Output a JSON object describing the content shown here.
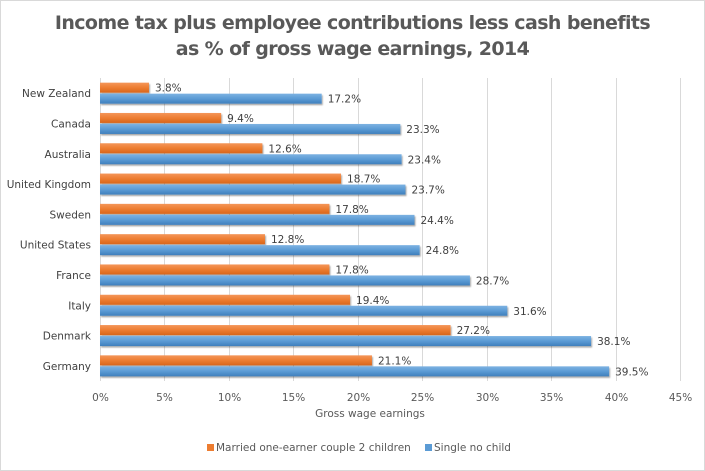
{
  "chart_data": {
    "type": "bar",
    "orientation": "horizontal",
    "title_lines": [
      "Income tax plus employee contributions  less cash benefits",
      "as % of gross wage earnings,  2014"
    ],
    "xlabel": "Gross wage earnings",
    "ylabel": "",
    "xlim": [
      0,
      45
    ],
    "x_ticks": [
      "0%",
      "5%",
      "10%",
      "15%",
      "20%",
      "25%",
      "30%",
      "35%",
      "40%",
      "45%"
    ],
    "x_tick_values": [
      0,
      5,
      10,
      15,
      20,
      25,
      30,
      35,
      40,
      45
    ],
    "grid": true,
    "legend_position": "bottom",
    "categories": [
      "New Zealand",
      "Canada",
      "Australia",
      "United Kingdom",
      "Sweden",
      "United States",
      "France",
      "Italy",
      "Denmark",
      "Germany"
    ],
    "series": [
      {
        "name": "Married one-earner couple 2 children",
        "color": "#ED7D31",
        "values": [
          3.8,
          9.4,
          12.6,
          18.7,
          17.8,
          12.8,
          17.8,
          19.4,
          27.2,
          21.1
        ],
        "labels": [
          "3.8%",
          "9.4%",
          "12.6%",
          "18.7%",
          "17.8%",
          "12.8%",
          "17.8%",
          "19.4%",
          "27.2%",
          "21.1%"
        ]
      },
      {
        "name": "Single no child",
        "color": "#5B9BD5",
        "values": [
          17.2,
          23.3,
          23.4,
          23.7,
          24.4,
          24.8,
          28.7,
          31.6,
          38.1,
          39.5
        ],
        "labels": [
          "17.2%",
          "23.3%",
          "23.4%",
          "23.7%",
          "24.4%",
          "24.8%",
          "28.7%",
          "31.6%",
          "38.1%",
          "39.5%"
        ]
      }
    ]
  }
}
